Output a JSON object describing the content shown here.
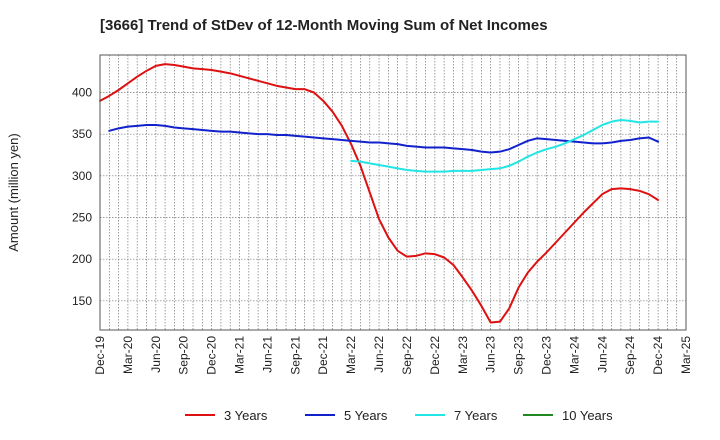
{
  "chart_data": {
    "type": "line",
    "title": "[3666]  Trend of StDev of 12-Month Moving Sum of Net Incomes",
    "xlabel": "",
    "ylabel": "Amount (million yen)",
    "ylim": [
      115,
      445
    ],
    "yticks": [
      150,
      200,
      250,
      300,
      350,
      400
    ],
    "xticks": [
      "Dec-19",
      "Mar-20",
      "Jun-20",
      "Sep-20",
      "Dec-20",
      "Mar-21",
      "Jun-21",
      "Sep-21",
      "Dec-21",
      "Mar-22",
      "Jun-22",
      "Sep-22",
      "Dec-22",
      "Mar-23",
      "Jun-23",
      "Sep-23",
      "Dec-23",
      "Mar-24",
      "Jun-24",
      "Sep-24",
      "Dec-24",
      "Mar-25"
    ],
    "grid": true,
    "legend_position": "bottom",
    "series": [
      {
        "name": "3 Years",
        "color": "#dd1111",
        "points": [
          [
            "Dec-19",
            390
          ],
          [
            "Jan-20",
            396
          ],
          [
            "Feb-20",
            403
          ],
          [
            "Mar-20",
            411
          ],
          [
            "Apr-20",
            419
          ],
          [
            "May-20",
            426
          ],
          [
            "Jun-20",
            432
          ],
          [
            "Jul-20",
            434
          ],
          [
            "Aug-20",
            433
          ],
          [
            "Sep-20",
            431
          ],
          [
            "Oct-20",
            429
          ],
          [
            "Nov-20",
            428
          ],
          [
            "Dec-20",
            427
          ],
          [
            "Jan-21",
            425
          ],
          [
            "Feb-21",
            423
          ],
          [
            "Mar-21",
            420
          ],
          [
            "Apr-21",
            417
          ],
          [
            "May-21",
            414
          ],
          [
            "Jun-21",
            411
          ],
          [
            "Jul-21",
            408
          ],
          [
            "Aug-21",
            406
          ],
          [
            "Sep-21",
            404
          ],
          [
            "Oct-21",
            404
          ],
          [
            "Nov-21",
            400
          ],
          [
            "Dec-21",
            390
          ],
          [
            "Jan-22",
            377
          ],
          [
            "Feb-22",
            360
          ],
          [
            "Mar-22",
            338
          ],
          [
            "Apr-22",
            312
          ],
          [
            "May-22",
            280
          ],
          [
            "Jun-22",
            248
          ],
          [
            "Jul-22",
            226
          ],
          [
            "Aug-22",
            210
          ],
          [
            "Sep-22",
            203
          ],
          [
            "Oct-22",
            204
          ],
          [
            "Nov-22",
            207
          ],
          [
            "Dec-22",
            206
          ],
          [
            "Jan-23",
            202
          ],
          [
            "Feb-23",
            193
          ],
          [
            "Mar-23",
            178
          ],
          [
            "Apr-23",
            162
          ],
          [
            "May-23",
            144
          ],
          [
            "Jun-23",
            124
          ],
          [
            "Jul-23",
            125
          ],
          [
            "Aug-23",
            141
          ],
          [
            "Sep-23",
            166
          ],
          [
            "Oct-23",
            184
          ],
          [
            "Nov-23",
            197
          ],
          [
            "Dec-23",
            208
          ],
          [
            "Jan-24",
            220
          ],
          [
            "Feb-24",
            232
          ],
          [
            "Mar-24",
            244
          ],
          [
            "Apr-24",
            256
          ],
          [
            "May-24",
            267
          ],
          [
            "Jun-24",
            278
          ],
          [
            "Jul-24",
            284
          ],
          [
            "Aug-24",
            285
          ],
          [
            "Sep-24",
            284
          ],
          [
            "Oct-24",
            282
          ],
          [
            "Nov-24",
            278
          ],
          [
            "Dec-24",
            271
          ]
        ]
      },
      {
        "name": "5 Years",
        "color": "#1122cc",
        "points": [
          [
            "Jan-20",
            354
          ],
          [
            "Feb-20",
            357
          ],
          [
            "Mar-20",
            359
          ],
          [
            "Apr-20",
            360
          ],
          [
            "May-20",
            361
          ],
          [
            "Jun-20",
            361
          ],
          [
            "Jul-20",
            360
          ],
          [
            "Aug-20",
            358
          ],
          [
            "Sep-20",
            357
          ],
          [
            "Oct-20",
            356
          ],
          [
            "Nov-20",
            355
          ],
          [
            "Dec-20",
            354
          ],
          [
            "Jan-21",
            353
          ],
          [
            "Feb-21",
            353
          ],
          [
            "Mar-21",
            352
          ],
          [
            "Apr-21",
            351
          ],
          [
            "May-21",
            350
          ],
          [
            "Jun-21",
            350
          ],
          [
            "Jul-21",
            349
          ],
          [
            "Aug-21",
            349
          ],
          [
            "Sep-21",
            348
          ],
          [
            "Oct-21",
            347
          ],
          [
            "Nov-21",
            346
          ],
          [
            "Dec-21",
            345
          ],
          [
            "Jan-22",
            344
          ],
          [
            "Feb-22",
            343
          ],
          [
            "Mar-22",
            342
          ],
          [
            "Apr-22",
            341
          ],
          [
            "May-22",
            340
          ],
          [
            "Jun-22",
            340
          ],
          [
            "Jul-22",
            339
          ],
          [
            "Aug-22",
            338
          ],
          [
            "Sep-22",
            336
          ],
          [
            "Oct-22",
            335
          ],
          [
            "Nov-22",
            334
          ],
          [
            "Dec-22",
            334
          ],
          [
            "Jan-23",
            334
          ],
          [
            "Feb-23",
            333
          ],
          [
            "Mar-23",
            332
          ],
          [
            "Apr-23",
            331
          ],
          [
            "May-23",
            329
          ],
          [
            "Jun-23",
            328
          ],
          [
            "Jul-23",
            329
          ],
          [
            "Aug-23",
            332
          ],
          [
            "Sep-23",
            337
          ],
          [
            "Oct-23",
            342
          ],
          [
            "Nov-23",
            345
          ],
          [
            "Dec-23",
            344
          ],
          [
            "Jan-24",
            343
          ],
          [
            "Feb-24",
            342
          ],
          [
            "Mar-24",
            341
          ],
          [
            "Apr-24",
            340
          ],
          [
            "May-24",
            339
          ],
          [
            "Jun-24",
            339
          ],
          [
            "Jul-24",
            340
          ],
          [
            "Aug-24",
            342
          ],
          [
            "Sep-24",
            343
          ],
          [
            "Oct-24",
            345
          ],
          [
            "Nov-24",
            346
          ],
          [
            "Dec-24",
            341
          ]
        ]
      },
      {
        "name": "7 Years",
        "color": "#22e5e5",
        "points": [
          [
            "Mar-22",
            318
          ],
          [
            "Apr-22",
            317
          ],
          [
            "May-22",
            315
          ],
          [
            "Jun-22",
            313
          ],
          [
            "Jul-22",
            311
          ],
          [
            "Aug-22",
            309
          ],
          [
            "Sep-22",
            307
          ],
          [
            "Oct-22",
            306
          ],
          [
            "Nov-22",
            305
          ],
          [
            "Dec-22",
            305
          ],
          [
            "Jan-23",
            305
          ],
          [
            "Feb-23",
            306
          ],
          [
            "Mar-23",
            306
          ],
          [
            "Apr-23",
            306
          ],
          [
            "May-23",
            307
          ],
          [
            "Jun-23",
            308
          ],
          [
            "Jul-23",
            309
          ],
          [
            "Aug-23",
            312
          ],
          [
            "Sep-23",
            317
          ],
          [
            "Oct-23",
            323
          ],
          [
            "Nov-23",
            328
          ],
          [
            "Dec-23",
            332
          ],
          [
            "Jan-24",
            335
          ],
          [
            "Feb-24",
            339
          ],
          [
            "Mar-24",
            344
          ],
          [
            "Apr-24",
            349
          ],
          [
            "May-24",
            355
          ],
          [
            "Jun-24",
            361
          ],
          [
            "Jul-24",
            365
          ],
          [
            "Aug-24",
            367
          ],
          [
            "Sep-24",
            366
          ],
          [
            "Oct-24",
            364
          ],
          [
            "Nov-24",
            365
          ],
          [
            "Dec-24",
            365
          ]
        ]
      },
      {
        "name": "10 Years",
        "color": "#228822",
        "points": []
      }
    ]
  }
}
